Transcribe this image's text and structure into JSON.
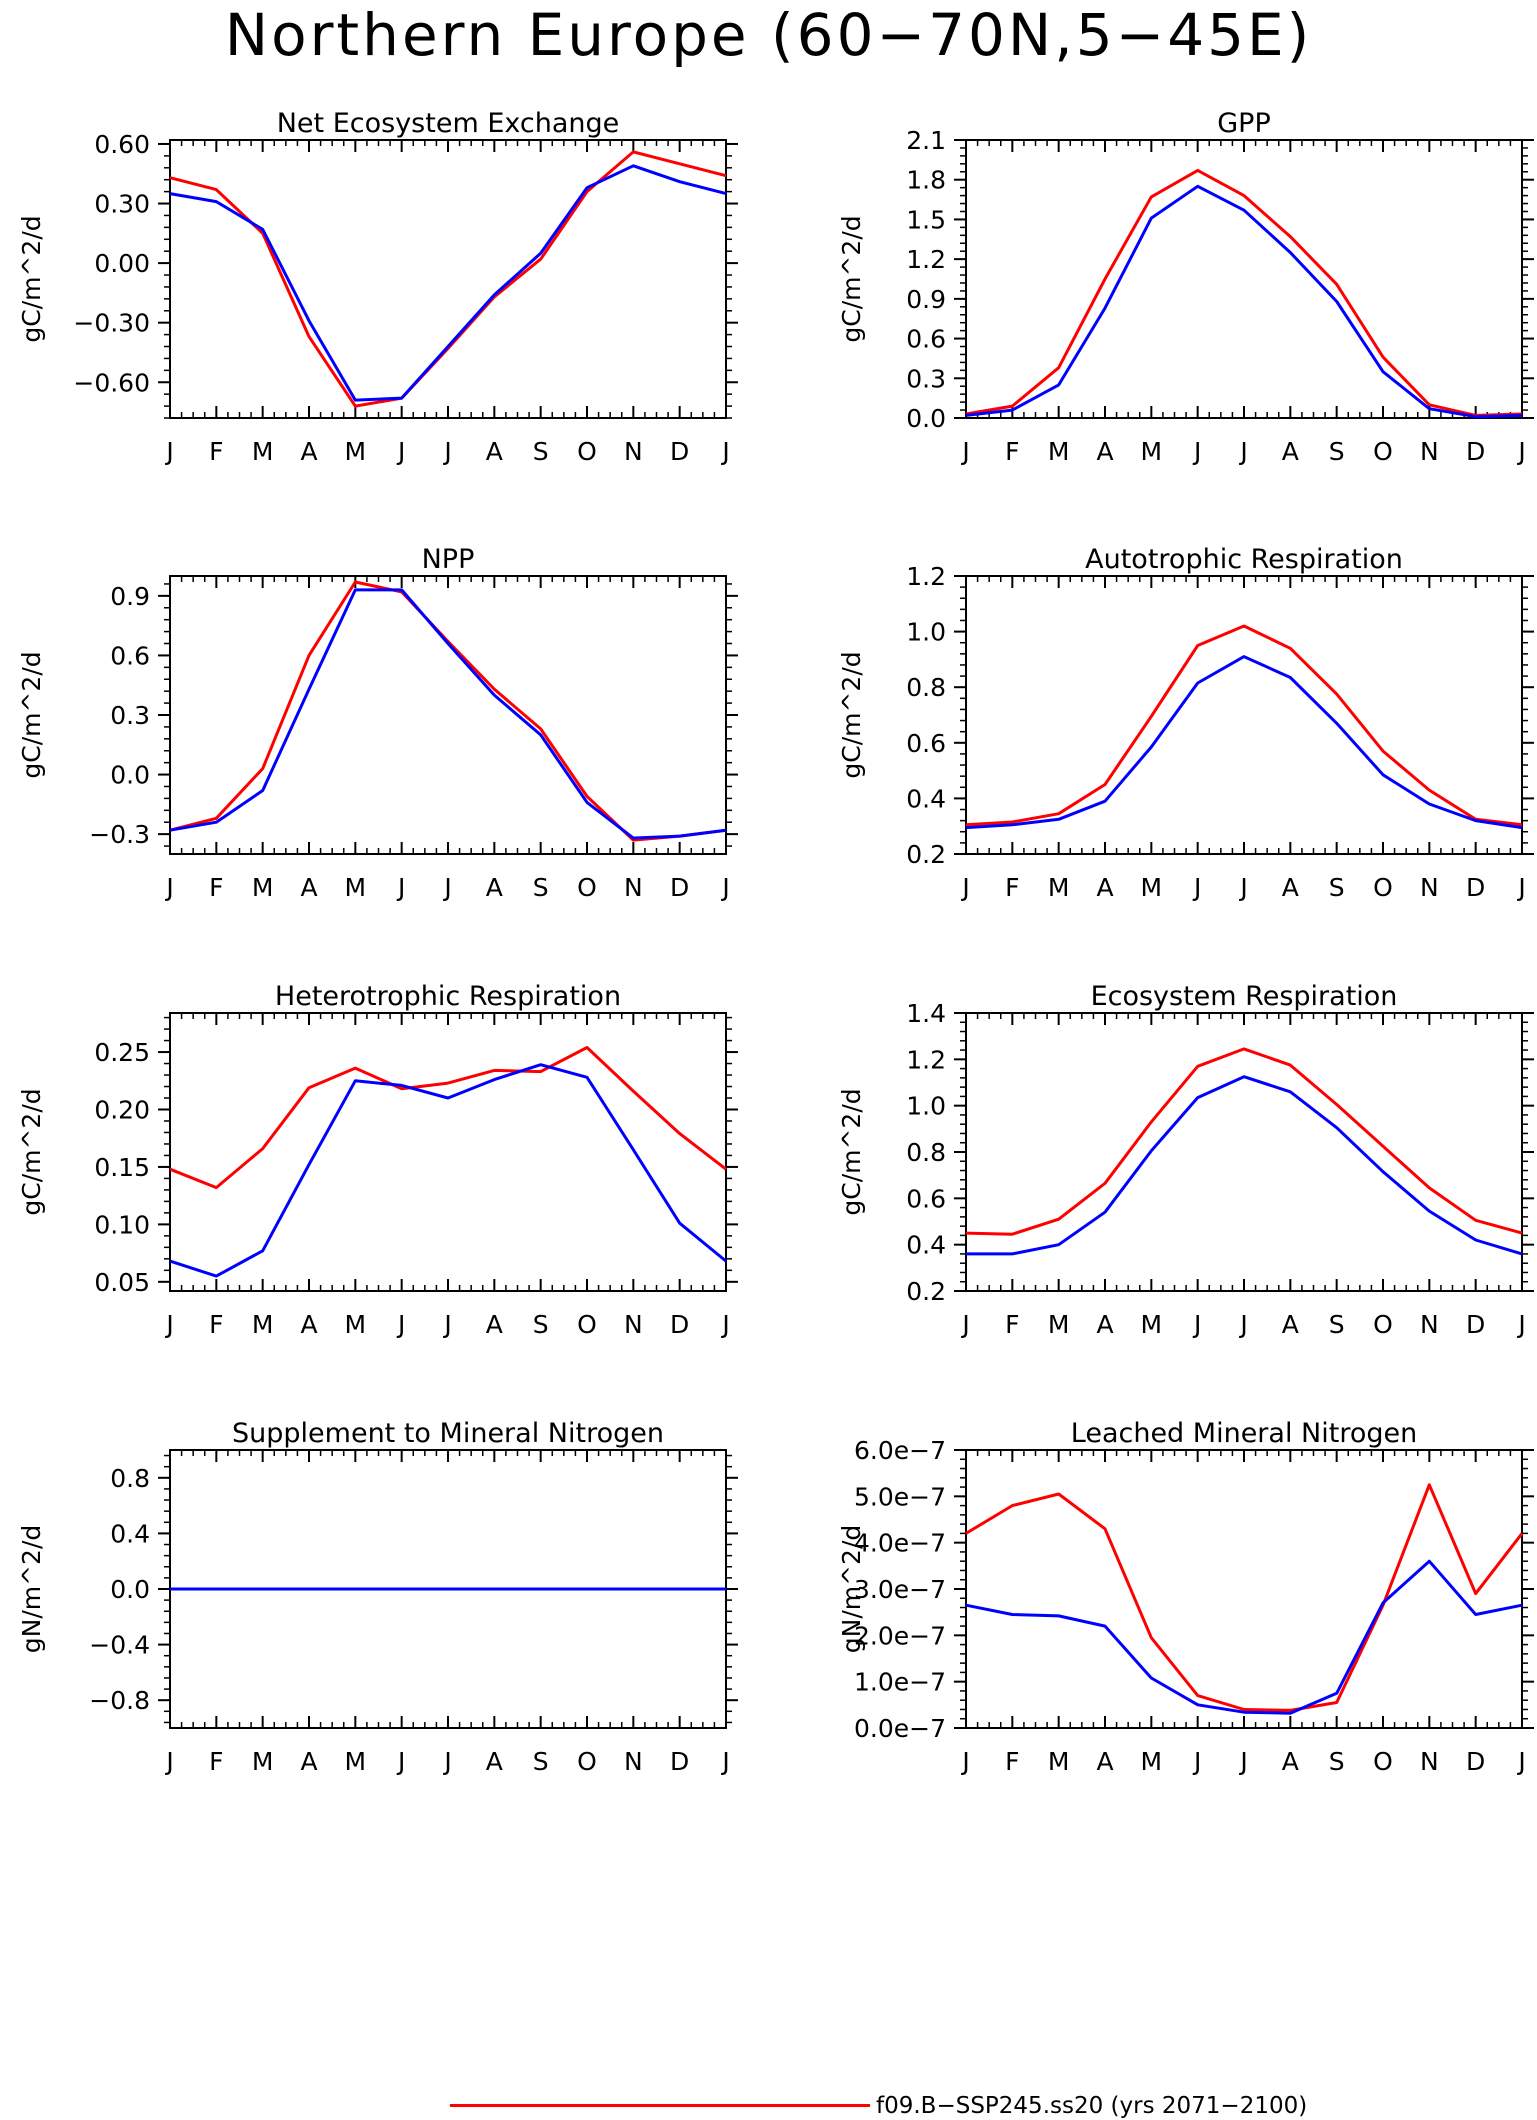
{
  "title": "Northern Europe (60−70N,5−45E)",
  "colors": {
    "red": "#ff0000",
    "blue": "#0000ff"
  },
  "legend": [
    {
      "color": "#ff0000",
      "label": "f09.B−SSP245.ss20 (yrs 2071−2100)"
    }
  ],
  "chart_data": [
    {
      "type": "line",
      "title": "Net Ecosystem Exchange",
      "ylabel": "gC/m^2/d",
      "categories": [
        "J",
        "F",
        "M",
        "A",
        "M",
        "J",
        "J",
        "A",
        "S",
        "O",
        "N",
        "D",
        "J"
      ],
      "ylim": [
        -0.78,
        0.62
      ],
      "yticks": [
        -0.6,
        -0.3,
        0.0,
        0.3,
        0.6
      ],
      "yticklabels": [
        "−0.60",
        "−0.30",
        "0.00",
        "0.30",
        "0.60"
      ],
      "series": [
        {
          "color": "#ff0000",
          "values": [
            0.43,
            0.37,
            0.15,
            -0.37,
            -0.72,
            -0.68,
            -0.43,
            -0.17,
            0.02,
            0.36,
            0.56,
            0.5,
            0.44
          ]
        },
        {
          "color": "#0000ff",
          "values": [
            0.35,
            0.31,
            0.17,
            -0.29,
            -0.69,
            -0.68,
            -0.42,
            -0.16,
            0.05,
            0.38,
            0.49,
            0.41,
            0.35
          ]
        }
      ]
    },
    {
      "type": "line",
      "title": "GPP",
      "ylabel": "gC/m^2/d",
      "categories": [
        "J",
        "F",
        "M",
        "A",
        "M",
        "J",
        "J",
        "A",
        "S",
        "O",
        "N",
        "D",
        "J"
      ],
      "ylim": [
        0.0,
        2.1
      ],
      "yticks": [
        0.0,
        0.3,
        0.6,
        0.9,
        1.2,
        1.5,
        1.8,
        2.1
      ],
      "yticklabels": [
        "0.0",
        "0.3",
        "0.6",
        "0.9",
        "1.2",
        "1.5",
        "1.8",
        "2.1"
      ],
      "series": [
        {
          "color": "#ff0000",
          "values": [
            0.03,
            0.09,
            0.38,
            1.05,
            1.67,
            1.87,
            1.68,
            1.37,
            1.01,
            0.46,
            0.1,
            0.02,
            0.03
          ]
        },
        {
          "color": "#0000ff",
          "values": [
            0.02,
            0.06,
            0.25,
            0.83,
            1.51,
            1.75,
            1.57,
            1.25,
            0.88,
            0.35,
            0.07,
            0.01,
            0.02
          ]
        }
      ]
    },
    {
      "type": "line",
      "title": "NPP",
      "ylabel": "gC/m^2/d",
      "categories": [
        "J",
        "F",
        "M",
        "A",
        "M",
        "J",
        "J",
        "A",
        "S",
        "O",
        "N",
        "D",
        "J"
      ],
      "ylim": [
        -0.4,
        1.0
      ],
      "yticks": [
        -0.3,
        0.0,
        0.3,
        0.6,
        0.9
      ],
      "yticklabels": [
        "−0.3",
        "0.0",
        "0.3",
        "0.6",
        "0.9"
      ],
      "series": [
        {
          "color": "#ff0000",
          "values": [
            -0.28,
            -0.22,
            0.03,
            0.6,
            0.97,
            0.92,
            0.67,
            0.43,
            0.23,
            -0.11,
            -0.33,
            -0.31,
            -0.28
          ]
        },
        {
          "color": "#0000ff",
          "values": [
            -0.28,
            -0.24,
            -0.08,
            0.43,
            0.93,
            0.93,
            0.66,
            0.4,
            0.2,
            -0.14,
            -0.32,
            -0.31,
            -0.28
          ]
        }
      ]
    },
    {
      "type": "line",
      "title": "Autotrophic Respiration",
      "ylabel": "gC/m^2/d",
      "categories": [
        "J",
        "F",
        "M",
        "A",
        "M",
        "J",
        "J",
        "A",
        "S",
        "O",
        "N",
        "D",
        "J"
      ],
      "ylim": [
        0.2,
        1.2
      ],
      "yticks": [
        0.2,
        0.4,
        0.6,
        0.8,
        1.0,
        1.2
      ],
      "yticklabels": [
        "0.2",
        "0.4",
        "0.6",
        "0.8",
        "1.0",
        "1.2"
      ],
      "series": [
        {
          "color": "#ff0000",
          "values": [
            0.305,
            0.315,
            0.345,
            0.45,
            0.695,
            0.95,
            1.02,
            0.94,
            0.775,
            0.57,
            0.43,
            0.325,
            0.305
          ]
        },
        {
          "color": "#0000ff",
          "values": [
            0.295,
            0.305,
            0.325,
            0.39,
            0.585,
            0.815,
            0.91,
            0.835,
            0.67,
            0.485,
            0.38,
            0.32,
            0.295
          ]
        }
      ]
    },
    {
      "type": "line",
      "title": "Heterotrophic Respiration",
      "ylabel": "gC/m^2/d",
      "categories": [
        "J",
        "F",
        "M",
        "A",
        "M",
        "J",
        "J",
        "A",
        "S",
        "O",
        "N",
        "D",
        "J"
      ],
      "ylim": [
        0.042,
        0.284
      ],
      "yticks": [
        0.05,
        0.1,
        0.15,
        0.2,
        0.25
      ],
      "yticklabels": [
        "0.05",
        "0.10",
        "0.15",
        "0.20",
        "0.25"
      ],
      "series": [
        {
          "color": "#ff0000",
          "values": [
            0.148,
            0.132,
            0.166,
            0.219,
            0.236,
            0.218,
            0.223,
            0.234,
            0.233,
            0.254,
            0.216,
            0.179,
            0.148
          ]
        },
        {
          "color": "#0000ff",
          "values": [
            0.068,
            0.055,
            0.077,
            0.152,
            0.225,
            0.221,
            0.21,
            0.226,
            0.239,
            0.228,
            0.165,
            0.101,
            0.068
          ]
        }
      ]
    },
    {
      "type": "line",
      "title": "Ecosystem Respiration",
      "ylabel": "gC/m^2/d",
      "categories": [
        "J",
        "F",
        "M",
        "A",
        "M",
        "J",
        "J",
        "A",
        "S",
        "O",
        "N",
        "D",
        "J"
      ],
      "ylim": [
        0.2,
        1.4
      ],
      "yticks": [
        0.2,
        0.4,
        0.6,
        0.8,
        1.0,
        1.2,
        1.4
      ],
      "yticklabels": [
        "0.2",
        "0.4",
        "0.6",
        "0.8",
        "1.0",
        "1.2",
        "1.4"
      ],
      "series": [
        {
          "color": "#ff0000",
          "values": [
            0.45,
            0.445,
            0.51,
            0.665,
            0.93,
            1.17,
            1.245,
            1.175,
            1.005,
            0.825,
            0.645,
            0.505,
            0.45
          ]
        },
        {
          "color": "#0000ff",
          "values": [
            0.36,
            0.36,
            0.4,
            0.54,
            0.805,
            1.035,
            1.125,
            1.06,
            0.905,
            0.715,
            0.545,
            0.42,
            0.36
          ]
        }
      ]
    },
    {
      "type": "line",
      "title": "Supplement to Mineral Nitrogen",
      "ylabel": "gN/m^2/d",
      "categories": [
        "J",
        "F",
        "M",
        "A",
        "M",
        "J",
        "J",
        "A",
        "S",
        "O",
        "N",
        "D",
        "J"
      ],
      "ylim": [
        -1.0,
        1.0
      ],
      "yticks": [
        -0.8,
        -0.4,
        0.0,
        0.4,
        0.8
      ],
      "yticklabels": [
        "−0.8",
        "−0.4",
        "0.0",
        "0.4",
        "0.8"
      ],
      "series": [
        {
          "color": "#ff0000",
          "values": [
            0,
            0,
            0,
            0,
            0,
            0,
            0,
            0,
            0,
            0,
            0,
            0,
            0
          ]
        },
        {
          "color": "#0000ff",
          "values": [
            0,
            0,
            0,
            0,
            0,
            0,
            0,
            0,
            0,
            0,
            0,
            0,
            0
          ]
        }
      ]
    },
    {
      "type": "line",
      "title": "Leached Mineral Nitrogen",
      "ylabel": "gN/m^2/d",
      "categories": [
        "J",
        "F",
        "M",
        "A",
        "M",
        "J",
        "J",
        "A",
        "S",
        "O",
        "N",
        "D",
        "J"
      ],
      "ylim": [
        0.0,
        6e-07
      ],
      "yticks": [
        0.0,
        1e-07,
        2e-07,
        3e-07,
        4e-07,
        5e-07,
        6e-07
      ],
      "yticklabels": [
        "0.0e−7",
        "1.0e−7",
        "2.0e−7",
        "3.0e−7",
        "4.0e−7",
        "5.0e−7",
        "6.0e−7"
      ],
      "series": [
        {
          "color": "#ff0000",
          "values": [
            4.2e-07,
            4.8e-07,
            5.05e-07,
            4.3e-07,
            1.95e-07,
            7e-08,
            4e-08,
            3.8e-08,
            5.5e-08,
            2.65e-07,
            5.25e-07,
            2.9e-07,
            4.2e-07
          ]
        },
        {
          "color": "#0000ff",
          "values": [
            2.65e-07,
            2.45e-07,
            2.42e-07,
            2.2e-07,
            1.08e-07,
            5e-08,
            3.4e-08,
            3.2e-08,
            7.5e-08,
            2.7e-07,
            3.6e-07,
            2.45e-07,
            2.65e-07
          ]
        }
      ]
    }
  ]
}
